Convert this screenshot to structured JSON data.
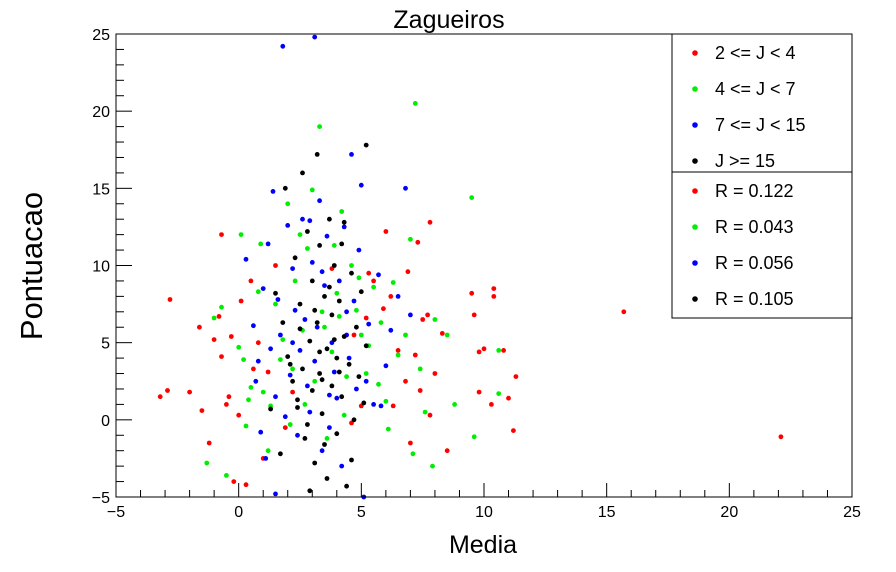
{
  "chart_data": {
    "type": "scatter",
    "title": "Zagueiros",
    "xlabel": "Media",
    "ylabel": "Pontuacao",
    "xlim": [
      -5,
      25
    ],
    "ylim": [
      -5,
      25
    ],
    "xticks": [
      "−5",
      "0",
      "5",
      "10",
      "15",
      "20",
      "25"
    ],
    "yticks": [
      "−5",
      "0",
      "5",
      "10",
      "15",
      "20",
      "25"
    ],
    "grid": false,
    "legend_position": "top-right",
    "legend_series": [
      "2 <= J < 4",
      "4 <= J < 7",
      "7 <= J < 15",
      "J >= 15"
    ],
    "legend_correlations": [
      "R = 0.122",
      "R = 0.043",
      "R = 0.056",
      "R = 0.105"
    ],
    "colors": [
      "#ff0000",
      "#00ee00",
      "#0000ff",
      "#000000"
    ],
    "series": [
      {
        "name": "2 <= J < 4",
        "color": "#ff0000",
        "points": [
          [
            -3.2,
            1.5
          ],
          [
            -2.9,
            1.9
          ],
          [
            -2.8,
            7.8
          ],
          [
            -2.0,
            1.8
          ],
          [
            -1.6,
            6.0
          ],
          [
            -1.5,
            0.6
          ],
          [
            -1.2,
            -1.5
          ],
          [
            -1.0,
            5.2
          ],
          [
            -0.8,
            6.7
          ],
          [
            -0.7,
            12.0
          ],
          [
            -0.7,
            4.1
          ],
          [
            -0.5,
            1.0
          ],
          [
            -0.4,
            1.5
          ],
          [
            -0.2,
            -4.0
          ],
          [
            0.0,
            0.3
          ],
          [
            0.1,
            7.7
          ],
          [
            0.3,
            -4.2
          ],
          [
            0.5,
            9.0
          ],
          [
            0.8,
            5.0
          ],
          [
            1.2,
            3.1
          ],
          [
            1.5,
            10.0
          ],
          [
            1.9,
            -0.5
          ],
          [
            5.3,
            9.5
          ],
          [
            5.5,
            9.0
          ],
          [
            5.9,
            7.2
          ],
          [
            6.0,
            12.2
          ],
          [
            6.2,
            8.0
          ],
          [
            6.5,
            4.5
          ],
          [
            6.8,
            2.5
          ],
          [
            7.2,
            4.2
          ],
          [
            7.3,
            11.5
          ],
          [
            7.5,
            6.5
          ],
          [
            7.7,
            6.8
          ],
          [
            7.8,
            0.3
          ],
          [
            7.8,
            12.8
          ],
          [
            8.0,
            3.0
          ],
          [
            8.5,
            -2.0
          ],
          [
            9.5,
            8.2
          ],
          [
            9.6,
            6.8
          ],
          [
            9.8,
            4.4
          ],
          [
            10.0,
            4.6
          ],
          [
            10.4,
            8.5
          ],
          [
            10.4,
            8.0
          ],
          [
            10.8,
            4.5
          ],
          [
            11.0,
            1.4
          ],
          [
            11.2,
            -0.7
          ],
          [
            11.3,
            2.8
          ],
          [
            15.7,
            7.0
          ],
          [
            22.1,
            -1.1
          ],
          [
            10.3,
            1.0
          ],
          [
            9.8,
            1.8
          ],
          [
            6.3,
            0.9
          ],
          [
            7.0,
            -1.5
          ],
          [
            4.7,
            5.5
          ],
          [
            5.2,
            6.6
          ],
          [
            -0.3,
            5.4
          ],
          [
            0.6,
            3.3
          ],
          [
            1.0,
            -2.5
          ],
          [
            6.9,
            9.6
          ],
          [
            8.3,
            5.6
          ],
          [
            7.4,
            1.9
          ],
          [
            4.6,
            -0.2
          ],
          [
            2.2,
            1.8
          ],
          [
            3.8,
            9.8
          ],
          [
            5.0,
            0.9
          ]
        ]
      },
      {
        "name": "4 <= J < 7",
        "color": "#00ee00",
        "points": [
          [
            -1.3,
            -2.8
          ],
          [
            -1.0,
            6.6
          ],
          [
            -0.7,
            7.3
          ],
          [
            -0.5,
            -3.6
          ],
          [
            0.0,
            4.7
          ],
          [
            0.1,
            12.0
          ],
          [
            0.2,
            3.9
          ],
          [
            0.3,
            -0.4
          ],
          [
            0.5,
            2.1
          ],
          [
            0.8,
            8.3
          ],
          [
            1.0,
            1.8
          ],
          [
            1.2,
            -2.0
          ],
          [
            1.5,
            7.5
          ],
          [
            1.8,
            5.2
          ],
          [
            2.0,
            14.0
          ],
          [
            2.2,
            3.3
          ],
          [
            2.3,
            9.0
          ],
          [
            2.5,
            12.0
          ],
          [
            2.7,
            1.0
          ],
          [
            3.0,
            14.9
          ],
          [
            3.1,
            2.5
          ],
          [
            3.3,
            19.0
          ],
          [
            3.5,
            6.0
          ],
          [
            3.8,
            4.4
          ],
          [
            4.0,
            8.2
          ],
          [
            4.2,
            13.5
          ],
          [
            4.4,
            2.8
          ],
          [
            4.6,
            10.0
          ],
          [
            4.8,
            7.1
          ],
          [
            5.0,
            5.5
          ],
          [
            5.2,
            3.0
          ],
          [
            5.5,
            8.6
          ],
          [
            5.8,
            6.3
          ],
          [
            6.0,
            1.2
          ],
          [
            6.3,
            8.9
          ],
          [
            6.5,
            4.2
          ],
          [
            6.8,
            5.5
          ],
          [
            7.0,
            11.7
          ],
          [
            7.2,
            20.5
          ],
          [
            7.4,
            3.3
          ],
          [
            7.6,
            0.5
          ],
          [
            7.9,
            -3.0
          ],
          [
            8.0,
            6.5
          ],
          [
            8.5,
            5.5
          ],
          [
            8.8,
            1.0
          ],
          [
            9.5,
            14.4
          ],
          [
            9.6,
            -1.1
          ],
          [
            10.6,
            4.5
          ],
          [
            10.6,
            1.7
          ],
          [
            3.6,
            -1.2
          ],
          [
            2.1,
            -0.3
          ],
          [
            4.3,
            0.3
          ],
          [
            1.7,
            3.9
          ],
          [
            0.9,
            11.4
          ],
          [
            2.8,
            11.1
          ],
          [
            4.9,
            9.2
          ],
          [
            5.7,
            2.3
          ],
          [
            3.4,
            7.0
          ],
          [
            6.1,
            -0.6
          ],
          [
            1.3,
            0.9
          ],
          [
            2.6,
            5.8
          ],
          [
            4.1,
            6.7
          ],
          [
            5.3,
            4.8
          ],
          [
            0.4,
            1.3
          ],
          [
            7.1,
            -2.2
          ],
          [
            3.9,
            11.3
          ]
        ]
      },
      {
        "name": "7 <= J < 15",
        "color": "#0000ff",
        "points": [
          [
            1.8,
            24.2
          ],
          [
            3.1,
            24.8
          ],
          [
            0.3,
            10.4
          ],
          [
            0.6,
            6.1
          ],
          [
            0.8,
            3.8
          ],
          [
            1.0,
            8.5
          ],
          [
            1.2,
            11.4
          ],
          [
            1.4,
            14.8
          ],
          [
            1.5,
            -4.8
          ],
          [
            1.7,
            5.5
          ],
          [
            2.0,
            12.6
          ],
          [
            2.2,
            9.8
          ],
          [
            2.3,
            7.1
          ],
          [
            2.5,
            4.5
          ],
          [
            2.6,
            13.0
          ],
          [
            2.8,
            2.2
          ],
          [
            2.9,
            0.5
          ],
          [
            3.0,
            10.2
          ],
          [
            3.2,
            6.0
          ],
          [
            3.3,
            14.2
          ],
          [
            3.4,
            -2.0
          ],
          [
            3.5,
            8.7
          ],
          [
            3.6,
            11.9
          ],
          [
            3.8,
            5.0
          ],
          [
            3.9,
            3.1
          ],
          [
            4.0,
            1.4
          ],
          [
            4.1,
            9.0
          ],
          [
            4.3,
            12.5
          ],
          [
            4.4,
            7.0
          ],
          [
            4.5,
            4.0
          ],
          [
            4.6,
            17.2
          ],
          [
            4.8,
            2.0
          ],
          [
            5.0,
            15.2
          ],
          [
            5.1,
            -5.0
          ],
          [
            5.3,
            6.2
          ],
          [
            5.5,
            1.0
          ],
          [
            5.7,
            9.4
          ],
          [
            6.0,
            3.5
          ],
          [
            6.2,
            5.8
          ],
          [
            6.5,
            8.0
          ],
          [
            7.0,
            6.8
          ],
          [
            1.1,
            -2.5
          ],
          [
            1.9,
            0.2
          ],
          [
            2.4,
            -1.0
          ],
          [
            3.7,
            -0.5
          ],
          [
            4.2,
            -3.0
          ],
          [
            0.7,
            2.5
          ],
          [
            1.3,
            4.6
          ],
          [
            2.7,
            6.5
          ],
          [
            3.1,
            3.8
          ],
          [
            4.7,
            7.7
          ],
          [
            5.8,
            0.9
          ],
          [
            2.1,
            2.9
          ],
          [
            3.4,
            9.6
          ],
          [
            4.9,
            11.0
          ],
          [
            1.6,
            7.8
          ],
          [
            2.9,
            12.9
          ],
          [
            0.9,
            -0.8
          ],
          [
            3.7,
            1.6
          ],
          [
            4.4,
            5.5
          ],
          [
            5.2,
            2.5
          ],
          [
            2.2,
            5.0
          ],
          [
            6.8,
            15.0
          ],
          [
            1.5,
            1.5
          ]
        ]
      },
      {
        "name": "J >= 15",
        "color": "#000000",
        "points": [
          [
            1.9,
            15.0
          ],
          [
            2.6,
            16.0
          ],
          [
            3.2,
            17.2
          ],
          [
            5.2,
            17.8
          ],
          [
            1.5,
            8.2
          ],
          [
            1.8,
            6.3
          ],
          [
            2.0,
            4.1
          ],
          [
            2.2,
            2.5
          ],
          [
            2.3,
            10.5
          ],
          [
            2.4,
            0.8
          ],
          [
            2.5,
            7.5
          ],
          [
            2.6,
            3.3
          ],
          [
            2.7,
            -1.2
          ],
          [
            2.8,
            12.2
          ],
          [
            2.9,
            5.1
          ],
          [
            3.0,
            1.9
          ],
          [
            3.0,
            9.0
          ],
          [
            3.1,
            -2.8
          ],
          [
            3.2,
            6.3
          ],
          [
            3.3,
            3.0
          ],
          [
            3.3,
            11.3
          ],
          [
            3.4,
            0.4
          ],
          [
            3.5,
            8.0
          ],
          [
            3.6,
            4.6
          ],
          [
            3.6,
            -3.8
          ],
          [
            3.7,
            13.0
          ],
          [
            3.8,
            2.2
          ],
          [
            3.8,
            6.8
          ],
          [
            3.9,
            10.0
          ],
          [
            4.0,
            -0.9
          ],
          [
            4.0,
            4.0
          ],
          [
            4.1,
            7.7
          ],
          [
            4.2,
            1.5
          ],
          [
            4.3,
            12.8
          ],
          [
            4.3,
            5.4
          ],
          [
            4.4,
            -4.3
          ],
          [
            4.5,
            3.6
          ],
          [
            4.6,
            9.5
          ],
          [
            4.7,
            0.0
          ],
          [
            4.8,
            6.0
          ],
          [
            4.9,
            2.8
          ],
          [
            5.0,
            8.3
          ],
          [
            5.2,
            4.8
          ],
          [
            1.3,
            0.7
          ],
          [
            1.7,
            -2.2
          ],
          [
            2.1,
            3.6
          ],
          [
            2.8,
            -0.3
          ],
          [
            3.1,
            7.1
          ],
          [
            3.5,
            -1.6
          ],
          [
            3.9,
            5.2
          ],
          [
            4.2,
            11.4
          ],
          [
            4.6,
            -2.6
          ],
          [
            5.1,
            1.1
          ],
          [
            3.4,
            2.6
          ],
          [
            2.5,
            5.9
          ],
          [
            3.7,
            8.6
          ],
          [
            2.9,
            -4.6
          ],
          [
            4.1,
            3.1
          ],
          [
            3.3,
            4.4
          ],
          [
            2.4,
            1.3
          ]
        ]
      }
    ]
  }
}
